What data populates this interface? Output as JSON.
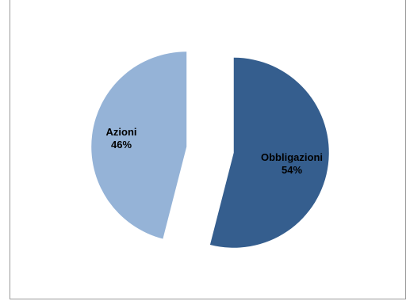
{
  "chart_data": {
    "type": "pie",
    "exploded": true,
    "slices": [
      {
        "label": "Obbligazioni",
        "value": 54,
        "value_label": "54%",
        "color": "#355e8e"
      },
      {
        "label": "Azioni",
        "value": 46,
        "value_label": "46%",
        "color": "#95b3d7"
      }
    ]
  }
}
